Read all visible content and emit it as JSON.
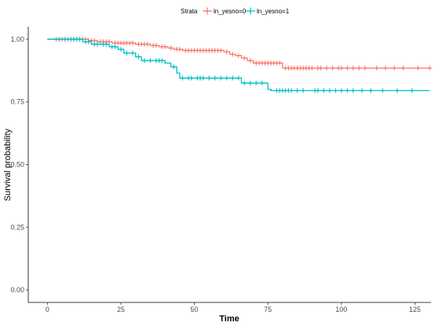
{
  "chart_data": {
    "type": "line",
    "subtype": "kaplan-meier step curve",
    "xlabel": "Time",
    "ylabel": "Survival probability",
    "xlim": [
      -6.5,
      130.5
    ],
    "ylim": [
      -0.05,
      1.05
    ],
    "xticks": [
      0,
      25,
      50,
      75,
      100,
      125
    ],
    "yticks": [
      0.0,
      0.25,
      0.5,
      0.75,
      1.0
    ],
    "xtick_labels": [
      "0",
      "25",
      "50",
      "75",
      "100",
      "125"
    ],
    "ytick_labels": [
      "0.00",
      "0.25",
      "0.50",
      "0.75",
      "1.00"
    ],
    "grid": false,
    "legend": {
      "position": "top",
      "title": "Strata",
      "entries": [
        "ln_yesno=0",
        "ln_yesno=1"
      ]
    },
    "series": [
      {
        "name": "ln_yesno=0",
        "color": "#F8766D",
        "steps": [
          [
            0,
            1.0
          ],
          [
            14,
            0.995
          ],
          [
            17,
            0.99
          ],
          [
            22,
            0.985
          ],
          [
            30,
            0.98
          ],
          [
            35,
            0.975
          ],
          [
            38,
            0.97
          ],
          [
            41,
            0.965
          ],
          [
            43,
            0.96
          ],
          [
            46,
            0.955
          ],
          [
            60,
            0.95
          ],
          [
            62,
            0.94
          ],
          [
            64,
            0.935
          ],
          [
            66,
            0.925
          ],
          [
            68,
            0.915
          ],
          [
            70,
            0.905
          ],
          [
            80,
            0.885
          ],
          [
            130,
            0.885
          ]
        ],
        "censor_times": [
          3,
          5,
          7,
          9,
          10,
          11,
          12,
          13,
          15,
          16,
          18,
          19,
          20,
          21,
          23,
          24,
          25,
          26,
          27,
          28,
          29,
          31,
          32,
          33,
          34,
          36,
          37,
          39,
          40,
          42,
          44,
          45,
          47,
          48,
          49,
          50,
          51,
          52,
          53,
          54,
          55,
          56,
          57,
          58,
          59,
          61,
          63,
          65,
          67,
          69,
          71,
          72,
          73,
          74,
          75,
          76,
          77,
          78,
          79,
          81,
          82,
          83,
          84,
          85,
          86,
          87,
          88,
          89,
          90,
          92,
          93,
          95,
          97,
          99,
          100,
          102,
          104,
          106,
          108,
          112,
          115,
          118,
          121,
          126,
          130
        ]
      },
      {
        "name": "ln_yesno=1",
        "color": "#00BFC4",
        "steps": [
          [
            0,
            1.0
          ],
          [
            12,
            0.99
          ],
          [
            15,
            0.98
          ],
          [
            21,
            0.97
          ],
          [
            24,
            0.96
          ],
          [
            26,
            0.945
          ],
          [
            30,
            0.93
          ],
          [
            32,
            0.915
          ],
          [
            40,
            0.905
          ],
          [
            42,
            0.89
          ],
          [
            44,
            0.865
          ],
          [
            45,
            0.845
          ],
          [
            66,
            0.825
          ],
          [
            75,
            0.8
          ],
          [
            76,
            0.795
          ],
          [
            130,
            0.795
          ]
        ],
        "censor_times": [
          4,
          6,
          8,
          9,
          10,
          11,
          13,
          14,
          16,
          17,
          19,
          20,
          22,
          23,
          25,
          27,
          29,
          31,
          33,
          35,
          37,
          38,
          39,
          43,
          46,
          48,
          49,
          51,
          52,
          53,
          55,
          57,
          59,
          61,
          63,
          65,
          67,
          69,
          71,
          73,
          78,
          79,
          80,
          81,
          82,
          83,
          85,
          87,
          91,
          92,
          94,
          96,
          98,
          100,
          102,
          104,
          107,
          110,
          114,
          119,
          124
        ]
      }
    ]
  }
}
